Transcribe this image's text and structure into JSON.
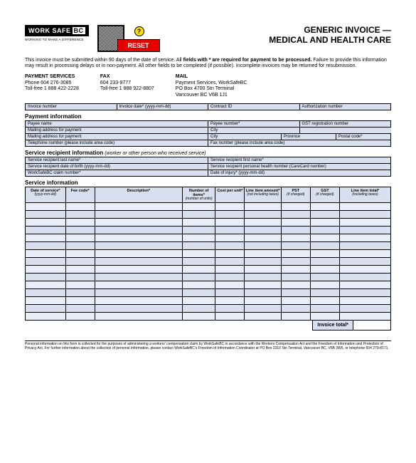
{
  "logo": {
    "brand": "WORK SAFE",
    "suffix": "BC",
    "tagline": "WORKING TO MAKE A DIFFERENCE"
  },
  "reset_label": "RESET",
  "title_line1": "GENERIC INVOICE —",
  "title_line2": "MEDICAL AND HEALTH CARE",
  "intro_plain1": "This invoice must be submitted within 90 days of the date of service. All ",
  "intro_bold": "fields with * are required for payment to be processed.",
  "intro_plain2": " Failure to provide this information may result in processing delays or in non-payment. All other fields to be completed (if possible). Incomplete invoices may be returned for resubmission.",
  "contacts": {
    "payment": {
      "hd": "PAYMENT SERVICES",
      "l1": "Phone 604 276-3085",
      "l2": "Toll-free 1 888 422-2228"
    },
    "fax": {
      "hd": "FAX",
      "l1": "604 233-9777",
      "l2": "Toll-free 1 888 922-8807"
    },
    "mail": {
      "hd": "MAIL",
      "l1": "Payment Services, WorkSafeBC",
      "l2": "PO Box 4700 Stn Terminal",
      "l3": "Vancouver BC   V6B 1J1"
    }
  },
  "row1": {
    "invoice_no": "Invoice number",
    "invoice_date": "Invoice date* (yyyy-mm-dd)",
    "contract_id": "Contract ID",
    "auth_no": "Authorization number"
  },
  "section_payment": "Payment information",
  "pay": {
    "payee_name": "Payee name",
    "payee_no": "Payee number*",
    "gst_reg": "GST registration number",
    "mail_addr": "Mailing address for payment",
    "city": "City",
    "province": "Province",
    "postal": "Postal code*",
    "tel": "Telephone number (please include area code)",
    "fax": "Fax number (please include area code)"
  },
  "section_recipient": "Service recipient information",
  "section_recipient_sub": " (worker or other person who received service)",
  "rec": {
    "last": "Service recipient last name*",
    "first": "Service recipient first name*",
    "dob": "Service recipient date of birth (yyyy-mm-dd)",
    "phn": "Service recipient personal health number (CareCard number)",
    "claim": "WorkSafeBC claim number*",
    "injury": "Date of injury* (yyyy-mm-dd)"
  },
  "section_service": "Service information",
  "svc_cols": [
    {
      "h": "Date of service*",
      "s": "(yyyy-mm-dd)"
    },
    {
      "h": "Fee code*",
      "s": ""
    },
    {
      "h": "Description*",
      "s": ""
    },
    {
      "h": "Number of items*",
      "s": "(number of units)"
    },
    {
      "h": "Cost per unit*",
      "s": ""
    },
    {
      "h": "Line item amount*",
      "s": "(not including taxes)"
    },
    {
      "h": "PST",
      "s": "(if charged)"
    },
    {
      "h": "GST",
      "s": "(if charged)"
    },
    {
      "h": "Line item total*",
      "s": "(including taxes)"
    }
  ],
  "svc_row_count": 15,
  "invoice_total_label": "Invoice total*",
  "footer": "Personal information on this form is collected for the purposes of administering a workers' compensation claim by WorkSafeBC in accordance with the Workers Compensation Act and the Freedom of Information and Protection of Privacy Act. For further information about the collection of personal information, please contact WorkSafeBC's Freedom of Information Coordinator at PO Box 2310 Stn Terminal, Vancouver BC, V6B 3W5, or telephone 604 279-8171.",
  "colors": {
    "header_bg": "#d8e0f0",
    "row_alt": "#e8eef7",
    "reset_bg": "#e60000"
  }
}
